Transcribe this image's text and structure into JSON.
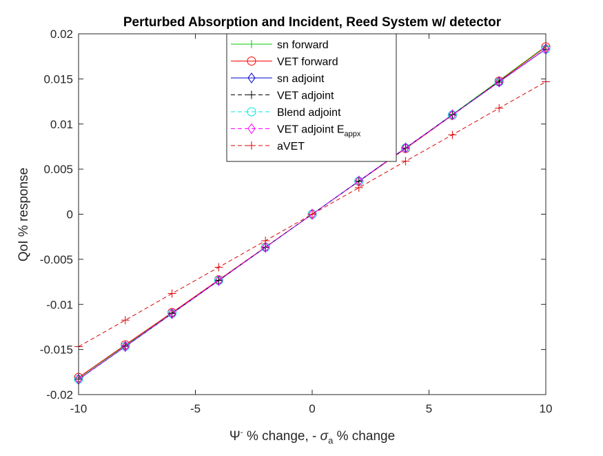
{
  "chart_data": {
    "type": "line",
    "title": "Perturbed Absorption and Incident, Reed System w/ detector",
    "xlabel": {
      "prefix": "Ψ",
      "sup": "-",
      "middle": " % change, - ",
      "sigma": "σ",
      "sub": "a",
      "suffix": " % change"
    },
    "ylabel": "QoI % response",
    "xlim": [
      -10,
      10
    ],
    "ylim": [
      -0.02,
      0.02
    ],
    "xticks": [
      -10,
      -5,
      0,
      5,
      10
    ],
    "xtick_labels": [
      "-10",
      "-5",
      "0",
      "5",
      "10"
    ],
    "yticks": [
      -0.02,
      -0.015,
      -0.01,
      -0.005,
      0,
      0.005,
      0.01,
      0.015,
      0.02
    ],
    "ytick_labels": [
      "-0.02",
      "-0.015",
      "-0.01",
      "-0.005",
      "0",
      "0.005",
      "0.01",
      "0.015",
      "0.02"
    ],
    "grid": false,
    "legend_position": "top-center",
    "x": [
      -10,
      -8,
      -6,
      -4,
      -2,
      0,
      2,
      4,
      6,
      8,
      10
    ],
    "series": [
      {
        "name": "sn forward",
        "color": "#00cc00",
        "dash": "solid",
        "marker": "plus",
        "values": [
          -0.01815,
          -0.01455,
          -0.01095,
          -0.0073,
          -0.00364,
          0,
          0.00364,
          0.0073,
          0.01105,
          0.01482,
          0.01862
        ]
      },
      {
        "name": "VET forward",
        "color": "#ff0000",
        "dash": "solid",
        "marker": "circle",
        "values": [
          -0.0181,
          -0.01448,
          -0.0109,
          -0.00728,
          -0.00364,
          0,
          0.00364,
          0.00728,
          0.01097,
          0.01475,
          0.01855
        ]
      },
      {
        "name": "sn adjoint",
        "color": "#0000cc",
        "dash": "solid",
        "marker": "diamond",
        "values": [
          -0.01832,
          -0.01468,
          -0.01102,
          -0.00736,
          -0.00368,
          0,
          0.00368,
          0.00736,
          0.01102,
          0.01468,
          0.01832
        ]
      },
      {
        "name": "VET adjoint",
        "color": "#000000",
        "dash": "dashed",
        "marker": "plus",
        "values": [
          -0.0183,
          -0.01465,
          -0.011,
          -0.00734,
          -0.00367,
          0,
          0.00367,
          0.00734,
          0.011,
          0.01465,
          0.0183
        ]
      },
      {
        "name": "Blend adjoint",
        "color": "#00e5e5",
        "dash": "dashed",
        "marker": "circle",
        "values": [
          -0.0183,
          -0.01465,
          -0.011,
          -0.00734,
          -0.00367,
          0,
          0.00367,
          0.00734,
          0.011,
          0.01465,
          0.0183
        ]
      },
      {
        "name": "VET adjoint E",
        "name_sub": "appx",
        "color": "#ff00ff",
        "dash": "dashed",
        "marker": "diamond",
        "values": [
          -0.0183,
          -0.01465,
          -0.011,
          -0.00734,
          -0.00367,
          0,
          0.00367,
          0.00734,
          0.011,
          0.01465,
          0.0183
        ]
      },
      {
        "name": "aVET",
        "color": "#dd0000",
        "dash": "dashed",
        "marker": "plus",
        "values": [
          -0.01468,
          -0.01175,
          -0.0088,
          -0.00588,
          -0.00294,
          0,
          0.00294,
          0.00588,
          0.0088,
          0.01175,
          0.01468
        ]
      }
    ]
  }
}
